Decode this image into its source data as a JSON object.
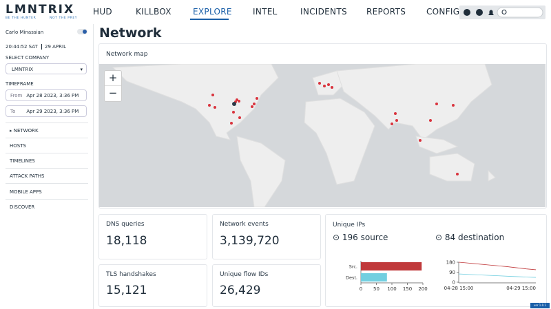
{
  "logo": {
    "name": "LMNTRIX",
    "tagline_left": "BE THE HUNTER",
    "tagline_right": "NOT THE PREY"
  },
  "nav": [
    "HUD",
    "KILLBOX",
    "EXPLORE",
    "INTEL",
    "INCIDENTS",
    "REPORTS",
    "CONFIG"
  ],
  "sidebar": {
    "user": "Carlo Minassian",
    "time": "20:44:52 SAT",
    "date": "29 APRIL",
    "select_company_label": "SELECT COMPANY",
    "company": "LMNTRIX",
    "timeframe_label": "TIMEFRAME",
    "from_label": "From",
    "from": "Apr 28 2023, 3:36 PM",
    "to_label": "To",
    "to": "Apr 29 2023, 3:36 PM",
    "menu": [
      "NETWORK",
      "HOSTS",
      "TIMELINES",
      "ATTACK PATHS",
      "MOBILE APPS",
      "DISCOVER"
    ]
  },
  "page_title": "Network",
  "map": {
    "title": "Network map",
    "zoom_in": "+",
    "zoom_out": "−"
  },
  "cards": [
    {
      "label": "DNS queries",
      "value": "18,118"
    },
    {
      "label": "Network events",
      "value": "3,139,720"
    },
    {
      "label": "TLS handshakes",
      "value": "15,121"
    },
    {
      "label": "Unique flow IDs",
      "value": "26,429"
    }
  ],
  "unique_ips": {
    "title": "Unique IPs",
    "source": "196 source",
    "destination": "84 destination"
  },
  "version": "ver 1.0.1",
  "chart_data": [
    {
      "type": "bar",
      "orientation": "horizontal",
      "categories": [
        "Src.",
        "Dest."
      ],
      "values": [
        196,
        84
      ],
      "colors": [
        "#c0393b",
        "#72cfe0"
      ],
      "xlim": [
        0,
        200
      ],
      "xticks": [
        0,
        50,
        100,
        150,
        200
      ]
    },
    {
      "type": "line",
      "x": [
        "04-28 15:00",
        null,
        null,
        null,
        null,
        null,
        null,
        null,
        "04-29 15:00"
      ],
      "ylim": [
        0,
        180
      ],
      "yticks": [
        0,
        90,
        180
      ],
      "series": [
        {
          "name": "Src.",
          "color": "#c0393b",
          "values": [
            180,
            172,
            164,
            156,
            148,
            140,
            130,
            120,
            112
          ]
        },
        {
          "name": "Dest.",
          "color": "#72cfe0",
          "values": [
            74,
            70,
            66,
            62,
            58,
            54,
            50,
            46,
            43
          ]
        }
      ]
    }
  ]
}
